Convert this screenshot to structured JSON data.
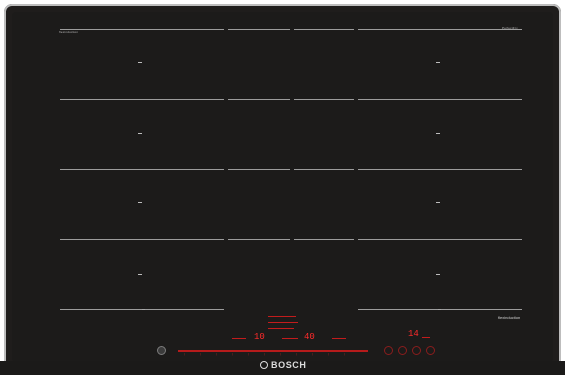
{
  "cooktop": {
    "brand": "BOSCH",
    "top_left_label": "flexinduction",
    "top_right_label": "PerfectFry",
    "bottom_right_label": "flexinduction",
    "left_display_value": "10",
    "center_display_value": "40",
    "right_display_value": "14"
  },
  "controls": {
    "power_icon": "power-icon",
    "slider_icons": [
      "minus-icon",
      "plus-icon"
    ]
  }
}
